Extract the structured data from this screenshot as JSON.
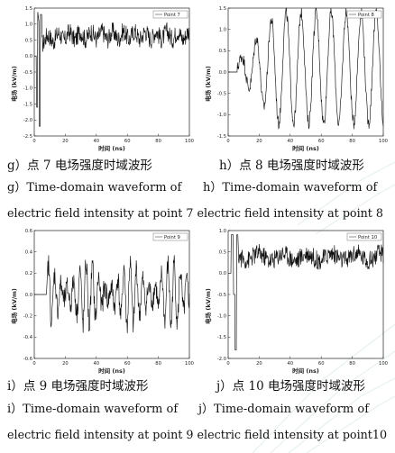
{
  "captions": {
    "g_cn": "g）点 7 电场强度时域波形",
    "h_cn": "h）点 8 电场强度时域波形",
    "g_en": "g）Time-domain waveform of",
    "h_en": "h）Time-domain waveform of",
    "row1_line2": "electric field intensity at point 7 electric field intensity at point 8",
    "i_cn": "i）点 9 电场强度时域波形",
    "j_cn": "j）点 10 电场强度时域波形",
    "i_en": "i）Time-domain waveform of",
    "j_en": "j）Time-domain waveform of",
    "row2_line2": "electric field intensity at point 9 electric field intensity at point10"
  },
  "chart_data": [
    {
      "type": "line",
      "panel": "g",
      "series": [
        {
          "name": "Point 7",
          "x_range": [
            0,
            100
          ],
          "y_approx": [
            -2.2,
            1.6
          ],
          "shape": "spike near x≈3 then noisy oscillation around 0.6"
        }
      ],
      "xlabel": "时间 (ns)",
      "ylabel": "电场 (kV/m)",
      "xlim": [
        0,
        100
      ],
      "ylim": [
        -2.5,
        1.5
      ],
      "xticks": [
        0,
        20,
        40,
        60,
        80,
        100
      ],
      "yticks": [
        1.5,
        1.0,
        0.5,
        0.0,
        -0.5,
        -1.0,
        -1.5,
        -2.0,
        -2.5
      ],
      "legend": "top-right"
    },
    {
      "type": "line",
      "panel": "h",
      "series": [
        {
          "name": "Point 8",
          "x_range": [
            5,
            100
          ],
          "y_approx": [
            -1.3,
            1.5
          ],
          "shape": "growing sinusoid-like oscillation, period ≈ 10 ns"
        }
      ],
      "xlabel": "时间 (ns)",
      "ylabel": "电场 (kV/m)",
      "xlim": [
        0,
        100
      ],
      "ylim": [
        -1.5,
        1.5
      ],
      "xticks": [
        0,
        20,
        40,
        60,
        80,
        100
      ],
      "yticks": [
        1.5,
        1.0,
        0.5,
        0.0,
        -0.5,
        -1.0,
        -1.5
      ],
      "legend": "top-right"
    },
    {
      "type": "line",
      "panel": "i",
      "series": [
        {
          "name": "Point 9",
          "x_range": [
            0,
            100
          ],
          "y_approx": [
            -0.45,
            0.4
          ],
          "shape": "flat zero until x≈8, then dense irregular oscillation"
        }
      ],
      "xlabel": "时间 (ns)",
      "ylabel": "电场 (kV/m)",
      "xlim": [
        0,
        100
      ],
      "ylim": [
        -0.6,
        0.6
      ],
      "xticks": [
        0,
        20,
        40,
        60,
        80,
        100
      ],
      "yticks": [
        0.6,
        0.4,
        0.2,
        0.0,
        -0.2,
        -0.4,
        -0.6
      ],
      "legend": "top-right"
    },
    {
      "type": "line",
      "panel": "j",
      "series": [
        {
          "name": "Point 10",
          "x_range": [
            0,
            100
          ],
          "y_approx": [
            -1.8,
            1.0
          ],
          "shape": "deep negative spike near x≈5 then noisy oscillation around 0.35"
        }
      ],
      "xlabel": "时间 (ns)",
      "ylabel": "电场 (kV/m)",
      "xlim": [
        0,
        100
      ],
      "ylim": [
        -2.0,
        1.0
      ],
      "xticks": [
        0,
        20,
        40,
        60,
        80,
        100
      ],
      "yticks": [
        1.0,
        0.5,
        0.0,
        -0.5,
        -1.0,
        -1.5,
        -2.0
      ],
      "legend": "top-right"
    }
  ]
}
